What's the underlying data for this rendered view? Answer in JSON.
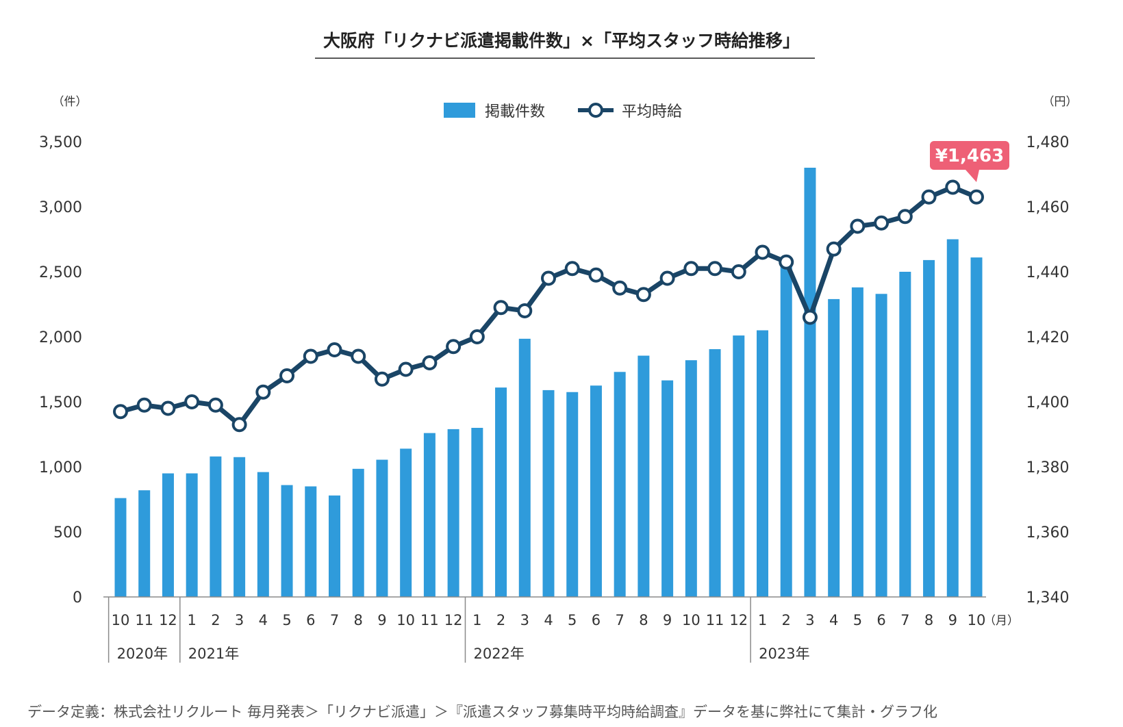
{
  "colors": {
    "bar": "#2f9bdb",
    "line": "#1a4566",
    "axis": "#8a8a8a",
    "callout": "#ee6076",
    "marker_fill": "#ffffff"
  },
  "chart_data": {
    "type": "bar",
    "title": "大阪府「リクナビ派遣掲載件数」×「平均スタッフ時給推移」",
    "left_unit": "（件）",
    "right_unit": "（円）",
    "x_unit": "（月）",
    "y_left_ticks": [
      "0",
      "500",
      "1,000",
      "1,500",
      "2,000",
      "2,500",
      "3,000",
      "3,500"
    ],
    "y_right_ticks": [
      "1,340",
      "1,360",
      "1,380",
      "1,400",
      "1,420",
      "1,440",
      "1,460",
      "1,480"
    ],
    "ylim_left": [
      0,
      3500
    ],
    "ylim_right": [
      1340,
      1480
    ],
    "categories": [
      "10",
      "11",
      "12",
      "1",
      "2",
      "3",
      "4",
      "5",
      "6",
      "7",
      "8",
      "9",
      "10",
      "11",
      "12",
      "1",
      "2",
      "3",
      "4",
      "5",
      "6",
      "7",
      "8",
      "9",
      "10",
      "11",
      "12",
      "1",
      "2",
      "3",
      "4",
      "5",
      "6",
      "7",
      "8",
      "9",
      "10"
    ],
    "year_groups": [
      {
        "label": "2020年",
        "start": 0,
        "count": 3
      },
      {
        "label": "2021年",
        "start": 3,
        "count": 12
      },
      {
        "label": "2022年",
        "start": 15,
        "count": 12
      },
      {
        "label": "2023年",
        "start": 27,
        "count": 10
      }
    ],
    "series": [
      {
        "name": "掲載件数",
        "type": "bar",
        "axis": "left",
        "values": [
          760,
          820,
          950,
          950,
          1080,
          1075,
          960,
          860,
          850,
          780,
          985,
          1055,
          1140,
          1260,
          1290,
          1300,
          1610,
          1985,
          1590,
          1575,
          1625,
          1730,
          1855,
          1665,
          1820,
          1905,
          2010,
          2050,
          2580,
          3300,
          2290,
          2380,
          2330,
          2500,
          2590,
          2750,
          2610
        ]
      },
      {
        "name": "平均時給",
        "type": "line",
        "axis": "right",
        "values": [
          1397,
          1399,
          1398,
          1400,
          1399,
          1393,
          1403,
          1408,
          1414,
          1416,
          1414,
          1407,
          1410,
          1412,
          1417,
          1420,
          1429,
          1428,
          1438,
          1441,
          1439,
          1435,
          1433,
          1438,
          1441,
          1441,
          1440,
          1446,
          1443,
          1426,
          1447,
          1454,
          1455,
          1457,
          1463,
          1466,
          1463
        ]
      }
    ],
    "callout": {
      "text": "¥1,463",
      "index": 36
    },
    "legend_position": "top-center",
    "grid": false,
    "source": "データ定義：株式会社リクルート 毎月発表＞「リクナビ派遣」＞『派遣スタッフ募集時平均時給調査』データを基に弊社にて集計・グラフ化"
  }
}
